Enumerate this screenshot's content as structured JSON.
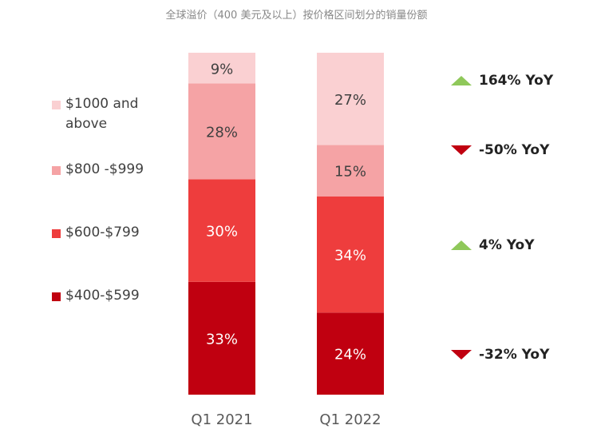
{
  "title": "全球溢价（400 美元及以上）按价格区间划分的销量份额",
  "chart_data": {
    "type": "bar",
    "stacked": true,
    "categories": [
      "Q1 2021",
      "Q1 2022"
    ],
    "series": [
      {
        "name": "$400-$599",
        "values": [
          33,
          24
        ],
        "labels": [
          "33%",
          "24%"
        ],
        "color": "#c00010"
      },
      {
        "name": "$600-$799",
        "values": [
          30,
          34
        ],
        "labels": [
          "30%",
          "34%"
        ],
        "color": "#ee3d3d"
      },
      {
        "name": "$800 -$999",
        "values": [
          28,
          15
        ],
        "labels": [
          "28%",
          "15%"
        ],
        "color": "#f5a3a5"
      },
      {
        "name": "$1000 and above",
        "values": [
          9,
          27
        ],
        "labels": [
          "9%",
          "27%"
        ],
        "color": "#fad0d2"
      }
    ],
    "ylim": [
      0,
      100
    ],
    "grid": false,
    "legend": "left",
    "annotations": [
      {
        "text": "164% YoY",
        "direction": "up",
        "series": "$1000 and above"
      },
      {
        "text": "-50% YoY",
        "direction": "down",
        "series": "$800 -$999"
      },
      {
        "text": "4% YoY",
        "direction": "up",
        "series": "$600-$799"
      },
      {
        "text": "-32% YoY",
        "direction": "down",
        "series": "$400-$599"
      }
    ],
    "annotation_colors": {
      "up": "#8fc85a",
      "down": "#c00010"
    }
  }
}
